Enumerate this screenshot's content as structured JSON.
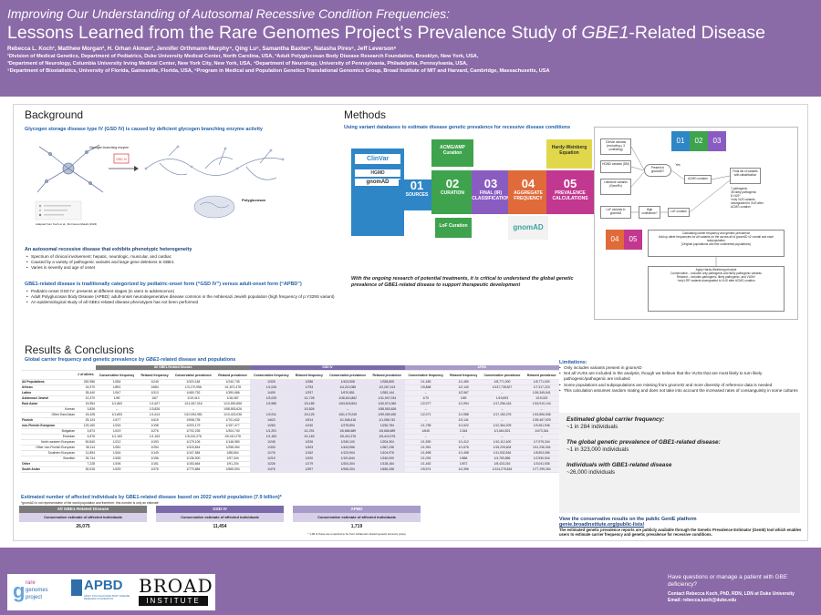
{
  "header": {
    "sup_title": "Improving Our Understanding of Autosomal Recessive Condition Frequencies:",
    "title_prefix": "Lessons Learned from the Rare Genomes Project’s Prevalence Study of ",
    "title_gene": "GBE1",
    "title_suffix": "-Related Disease",
    "authors": "Rebecca L. Koch¹, Matthew Morgan², H. Orhan Akman³, Jennifer Orthmann-Murphy⁴, Qing Lu⁵, Samantha Baxter⁶, Natasha Pires⁶, Jeff Leverson⁶",
    "affiliations": [
      "¹Division of Medical Genetics, Department of Pediatrics, Duke University Medical Center, North Carolina, USA, ²Adult Polyglucosan Body Disease Research Foundation, Brooklyn, New York, USA,",
      "³Department of Neurology, Columbia University Irving Medical Center, New York City, New York, USA, ⁴Department of Neurology, University of Pennsylvania, Philadelphia, Pennsylvania, USA,",
      "⁵Department of Biostatistics, University of Florida, Gainesville, Florida, USA, ⁶Program in Medical and Population Genetics Translational Genomics Group, Broad Institute of MIT and Harvard, Cambridge, Massachusetts, USA"
    ]
  },
  "background": {
    "title": "Background",
    "subtitle": "Glycogen storage disease type IV (GSD IV) is caused by deficient glycogen branching enzyme activity",
    "diagram_label_left": "Glycogen branching enzyme",
    "diagram_label_right": "Polyglucosan",
    "diagram_caption": "Adapted from Koch et al., Mol Genet Metab (2023)",
    "h1": "An autosomal recessive disease that exhibits phenotypic heterogeneity",
    "bullets1": [
      "Spectrum of clinical involvement: hepatic, neurologic, muscular, and cardiac",
      "Caused by a variety of pathogenic variants and large gene deletions in GBE1",
      "Varies in severity and age of onset"
    ],
    "h2": "GBE1-related disease is traditionally categorized by pediatric-onset form (“GSD IV”) versus adult-onset form (“APBD”)",
    "bullets2": [
      "Pediatric-onset GSD IV: presents at different stages (in utero to adolescence)",
      "Adult Polyglucosan Body Disease (APBD): adult-onset neurodegenerative disease common in the Ashkenazi Jewish population (high frequency of p.Y329S variant)",
      "An epidemiological study of all GBE1-related disease phenotypes has not been performed"
    ]
  },
  "methods": {
    "title": "Methods",
    "subtitle": "Using variant databases to estimate disease genetic prevalence for recessive disease conditions",
    "steps": [
      {
        "num": "01",
        "label": "SOURCES"
      },
      {
        "num": "02",
        "label": "CURATION"
      },
      {
        "num": "03",
        "label": "FINAL (IR) CLASSIFICATION"
      },
      {
        "num": "04",
        "label": "AGGREGATE FREQUENCY"
      },
      {
        "num": "05",
        "label": "PREVALENCE CALCULATIONS"
      }
    ],
    "sources": [
      "ClinVar",
      "HGMD",
      "gnomAD"
    ],
    "curation": [
      "ACMG/AMP Curation",
      "LoF Curation"
    ],
    "equation": "Hardy-Weinberg Equation",
    "db": "gnomAD",
    "quote": "With the ongoing research of potential treatments, it is critical to understand the global genetic prevalence of GBE1-related disease to support therapeutic development",
    "flow": {
      "clinvar_box": "ClinVar variants (excluding ≥ 3 conflicting)",
      "hgmd_box": "HGMD variants (DM)",
      "lit_box": "Literature variants (GeneRx)",
      "lof_box": "LoF variants in gnomAD",
      "present": "Present in gnomAD?",
      "yes": "Yes",
      "acmg": "ACMG curation",
      "hc": "High confidence?",
      "lof_cur": "LoF curation",
      "final": "Final list of variants with classification",
      "final_note": "7 pathogenic\n35 likely pathogenic\n8 VUS*\n*only VUS variants downgraded to VUS after ACMG curation",
      "calc_box": "Calculating carrier frequency and genetic prevalence\nAdd up allele frequencies for all variants on the across all of gnomAD v2 overall and each subpopulation\n(Original populations and fine continental populations)",
      "hwe_box": "Apply Hardy-Weinberg principle\nConservative – includes only pathogenic and likely pathogenic variants\nRelaxed – includes pathogenic, likely pathogenic, and VUSs*\n*only LRP variants downgraded to VUS after ACMG curation"
    }
  },
  "results": {
    "title": "Results & Conclusions",
    "subtitle_prefix": "Global carrier frequency and genetic prevalence by ",
    "subtitle_gene": "GBE1",
    "subtitle_suffix": "-related disease and populations",
    "groups": [
      "All GBE1-Related Disease",
      "GSD IV",
      "APBD"
    ],
    "col_headers": [
      "Conservative frequency",
      "Relaxed frequency",
      "Conservative prevalence",
      "Relaxed prevalence"
    ],
    "n_header": "# of alleles",
    "rows": [
      [
        "All Populations",
        "282,986",
        "1/284",
        "1/245",
        "1/323,184",
        "1/240,735",
        "1/325",
        "1/286",
        "1/423,508",
        "1/328,805",
        "1/1,480",
        "1/1,480",
        "1/8,771,000",
        "1/8,771,000"
      ],
      [
        "African",
        "24,970",
        "1/891",
        "1/684",
        "1/3,170,956",
        "1/1,872,478",
        "1/1,026",
        "1/753",
        "1/4,210,085",
        "1/2,267,413",
        "1/5,868",
        "1/2,140",
        "1/137,735,827",
        "1/7,317,223"
      ],
      [
        "Latino",
        "35,440",
        "1/347",
        "1/313",
        "1/480,752",
        "1/390,686",
        "1/409",
        "1/297",
        "1/670,851",
        "1/353,144",
        "–",
        "1/2,567",
        "–",
        "1/26,345,641"
      ],
      [
        "Ashkenazi Jewish",
        "10,370",
        "1/69",
        "1/67",
        "1/19,413",
        "1/18,087",
        "1/3,025",
        "1/1,728",
        "1/36,610,862",
        "1/11,947,034",
        "1/70",
        "1/69",
        "1/19,693",
        "1/19,023"
      ],
      [
        "East Asian",
        "19,954",
        "1/1,663",
        "1/1,627",
        "1/11,067,016",
        "1/10,590,656",
        "1/3,985",
        "1/3,185",
        "1/63,515,604",
        "1/40,574,060",
        "1/2,077",
        "1/1,994",
        "1/17,256,416",
        "1/15,910,144"
      ],
      [
        "Korean",
        "3,826",
        "–",
        "1/3,826",
        "–",
        "1/58,553,626",
        "–",
        "1/3,826",
        "–",
        "1/58,553,626",
        "–",
        "–",
        "–",
        "–"
      ],
      [
        "Other East Asian",
        "15,428",
        "1/1,653",
        "1/1,614",
        "1/10,934,981",
        "1/10,423,036",
        "1/3,911",
        "1/3,125",
        "1/61,179,245",
        "1/39,069,450",
        "1/2,071",
        "1/1,988",
        "1/17,150,276",
        "1/15,806,536"
      ],
      [
        "Finnish",
        "25,124",
        "1/477",
        "1/419",
        "1/908,735",
        "1/701,632",
        "1/623",
        "1/514",
        "1/1,548,416",
        "1/1,056,742",
        "–",
        "1/3,141",
        "–",
        "1/39,467,929"
      ],
      [
        "non-Finnish European",
        "129,160",
        "1/226",
        "1/198",
        "1/203,179",
        "1/157,477",
        "1/263",
        "1/240",
        "1/275,894",
        "1/230,784",
        "1/1,758",
        "1/1,522",
        "1/12,364,209",
        "1/9,261,946"
      ],
      [
        "Bulgarian",
        "3,874",
        "1/419",
        "1/276",
        "1/702,235",
        "1/304,740",
        "1/1,291",
        "1/1,291",
        "1/6,666,689",
        "1/6,666,689",
        "1/645",
        "1/344",
        "1/1,664,521",
        "1/473,344"
      ],
      [
        "Estonian",
        "4,876",
        "1/1,163",
        "1/1,163",
        "1/5,410,276",
        "1/5,410,276",
        "1/1,163",
        "1/1,163",
        "1/5,410,276",
        "1/5,410,276",
        "–",
        "–",
        "–",
        "–"
      ],
      [
        "North-western European",
        "50,840",
        "1/212",
        "1/193",
        "1/179,106",
        "1/148,980",
        "1/245",
        "1/226",
        "1/240,100",
        "1/204,304",
        "1/1,590",
        "1/1,412",
        "1/10,112,400",
        "1/7,975,344"
      ],
      [
        "Other non-Finnish European",
        "35,114",
        "1/281",
        "1/254",
        "1/315,844",
        "1/258,064",
        "1/333",
        "1/303",
        "1/443,556",
        "1/367,236",
        "1/1,951",
        "1/1,676",
        "1/15,225,604",
        "1/11,236,304"
      ],
      [
        "Southern European",
        "11,894",
        "1/164",
        "1/149",
        "1/107,584",
        "1/88,804",
        "1/176",
        "1/162",
        "1/123,904",
        "1/104,976",
        "1/1,698",
        "1/1,458",
        "1/11,532,816",
        "1/8,503,056"
      ],
      [
        "Swedish",
        "26,744",
        "1/185",
        "1/156",
        "1/136,900",
        "1/97,344",
        "1/219",
        "1/200",
        "1/191,844",
        "1/160,000",
        "1/1,092",
        "1/856",
        "1/4,769,856",
        "1/2,930,944"
      ],
      [
        "Other",
        "7,228",
        "1/196",
        "1/151",
        "1/153,664",
        "1/91,204",
        "1/226",
        "1/179",
        "1/204,304",
        "1/128,164",
        "1/1,452",
        "1/872",
        "1/8,433,216",
        "1/3,041,536"
      ],
      [
        "South Asian",
        "30,616",
        "1/439",
        "1/376",
        "1/770,884",
        "1/565,504",
        "1/476",
        "1/397",
        "1/906,304",
        "1/630,436",
        "1/5,574",
        "1/4,396",
        "1/124,276,816",
        "1/77,299,264"
      ]
    ],
    "affected_title": "Estimated number of affected individuals by GBE1-related disease based on 2022 world population (7.9 billion)*",
    "affected_note": "*gnomAD is not representative of the world population and therefore, this number is only an estimate",
    "affected_sub": "Conservative estimate of affected individuals",
    "affected": [
      {
        "group": "All GBE1-Related Disease",
        "value": "26,075"
      },
      {
        "group": "GSD IV",
        "value": "11,454"
      },
      {
        "group": "APBD",
        "value": "1,719"
      }
    ],
    "apbd_note": "* 1.08 of these are expected to be from Ashkenazi Jewish genetic ancestry group"
  },
  "limitations": {
    "title": "Limitations:",
    "bullets": [
      "Only includes variants present in gnomAD",
      "Not all VUSs are included in the analysis, though we believe that the VUSs that are most likely to turn likely pathogenic/pathogenic are included",
      "Some populations and subpopulations are missing from gnomAD and more diversity of reference data is needed",
      "This calculation assumes random mating and does not take into account the increased rates of consanguinity in some cultures"
    ]
  },
  "stats": [
    {
      "label": "Estimated global carrier frequency:",
      "value": "~1 in 284 individuals"
    },
    {
      "label": "The global genetic prevalence of GBE1-related disease:",
      "value": "~1 in 323,000 individuals"
    },
    {
      "label": "Individuals with GBE1-related disease",
      "value": "~26,000 individuals"
    }
  ],
  "genie": {
    "title": "View the conservative results on the public GeniE platform",
    "url": "genie.broadinstitute.org/public-lists/",
    "body": "The estimated genetic prevalence reports are publicly available through the Genetic Prevalence Estimator (GeniE) tool which enables users to estimate carrier frequency and genetic prevalence for recessive conditions."
  },
  "footer": {
    "logo1_a": "rare",
    "logo1_b": "genomes",
    "logo1_c": "project",
    "logo2": "APBD",
    "logo2_sub": "ADULT POLYGLUCOSAN BODY DISEASE RESEARCH FOUNDATION",
    "logo3_a": "BROAD",
    "logo3_b": "INSTITUTE",
    "question": "Have questions or manage a patient with GBE deficiency?",
    "contact": "Contact Rebecca Koch, PhD, RDN, LDN at Duke University",
    "email": "Email: rebecca.koch@duke.edu"
  },
  "colors": {
    "purple": "#8b6aa8",
    "blue_text": "#1f5fa8",
    "step1": "#2f86c6",
    "step2": "#3fa34d",
    "step3": "#8a5cc2",
    "step4": "#e06a3a",
    "step5": "#c2378f"
  }
}
